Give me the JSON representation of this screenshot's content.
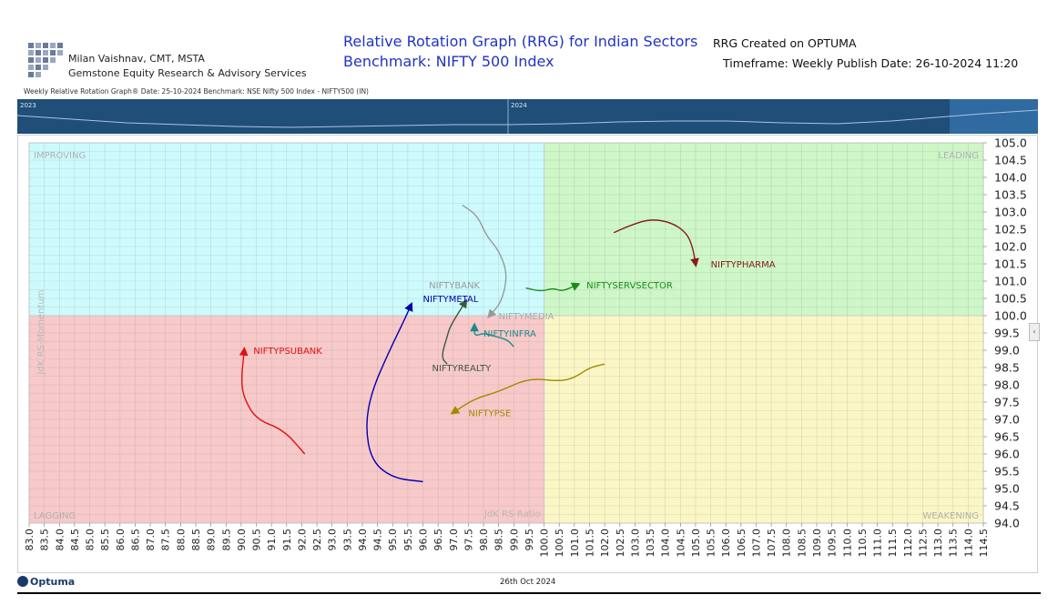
{
  "header": {
    "author_name": "Milan Vaishnav, CMT, MSTA",
    "company": "Gemstone Equity Research & Advisory Services",
    "title_line1": "Relative Rotation Graph (RRG) for Indian Sectors",
    "title_line2": "Benchmark: NIFTY 500 Index",
    "created_on": "RRG Created on OPTUMA",
    "timeframe": "Timeframe: Weekly  Publish Date: 26-10-2024 11:20",
    "subheader": "Weekly Relative Rotation Graph®   Date: 25-10-2024  Benchmark: NSE Nifty 500 Index - NIFTY500 (IN)"
  },
  "timeline": {
    "labels": [
      "2023",
      "2024"
    ]
  },
  "footer": {
    "brand": "Optuma",
    "date": "26th Oct 2024"
  },
  "colors": {
    "improving": "#cdfbfd",
    "leading": "#cdf7c7",
    "lagging": "#f8c9c9",
    "weakening": "#fbf7c5",
    "title_blue": "#1f34c4",
    "timeline_bg": "#1f4e79"
  },
  "chart_data": {
    "type": "scatter",
    "subtype": "relative-rotation-graph",
    "xlabel": "JdK RS-Ratio",
    "ylabel": "JdK RS-Momentum",
    "xlim": [
      83.0,
      114.5
    ],
    "ylim": [
      94.0,
      105.0
    ],
    "x_ticks": [
      "83.0",
      "83.5",
      "84.0",
      "84.5",
      "85.0",
      "85.5",
      "86.0",
      "86.5",
      "87.0",
      "87.5",
      "88.0",
      "88.5",
      "89.0",
      "89.5",
      "90.0",
      "90.5",
      "91.0",
      "91.5",
      "92.0",
      "92.5",
      "93.0",
      "93.5",
      "94.0",
      "94.5",
      "95.0",
      "95.5",
      "96.0",
      "96.5",
      "97.0",
      "97.5",
      "98.0",
      "98.5",
      "99.0",
      "99.5",
      "100.0",
      "100.5",
      "101.0",
      "101.5",
      "102.0",
      "102.5",
      "103.0",
      "103.5",
      "104.0",
      "104.5",
      "105.0",
      "105.5",
      "106.0",
      "106.5",
      "107.0",
      "107.5",
      "108.0",
      "108.5",
      "109.0",
      "109.5",
      "110.0",
      "110.5",
      "111.0",
      "111.5",
      "112.0",
      "112.5",
      "113.0",
      "113.5",
      "114.0",
      "114.5"
    ],
    "y_ticks": [
      "94.0",
      "94.5",
      "95.0",
      "95.5",
      "96.0",
      "96.5",
      "97.0",
      "97.5",
      "98.0",
      "98.5",
      "99.0",
      "99.5",
      "100.0",
      "100.5",
      "101.0",
      "101.5",
      "102.0",
      "102.5",
      "103.0",
      "103.5",
      "104.0",
      "104.5",
      "105.0"
    ],
    "quadrants": [
      {
        "name": "IMPROVING",
        "position": "top-left"
      },
      {
        "name": "LEADING",
        "position": "top-right"
      },
      {
        "name": "LAGGING",
        "position": "bottom-left"
      },
      {
        "name": "WEAKENING",
        "position": "bottom-right"
      }
    ],
    "grid": true,
    "series": [
      {
        "name": "NIFTYPHARMA",
        "color": "#8b1a1a",
        "points": [
          [
            102.3,
            102.4
          ],
          [
            102.8,
            102.6
          ],
          [
            103.5,
            102.8
          ],
          [
            104.2,
            102.7
          ],
          [
            104.7,
            102.4
          ],
          [
            104.9,
            102.0
          ],
          [
            105.0,
            101.5
          ]
        ]
      },
      {
        "name": "NIFTYSERVSECTOR",
        "color": "#1a8a1a",
        "points": [
          [
            99.4,
            100.8
          ],
          [
            99.9,
            100.7
          ],
          [
            100.3,
            100.8
          ],
          [
            100.6,
            100.7
          ],
          [
            101.1,
            100.9
          ]
        ]
      },
      {
        "name": "NIFTYBANK",
        "color": "#999999",
        "points": [
          [
            97.3,
            103.2
          ],
          [
            97.8,
            102.9
          ],
          [
            98.1,
            102.3
          ],
          [
            98.5,
            101.9
          ],
          [
            98.8,
            101.2
          ],
          [
            98.6,
            100.4
          ],
          [
            98.2,
            100.0
          ]
        ]
      },
      {
        "name": "NIFTYMEDIA",
        "color": "#aaaaaa",
        "points": []
      },
      {
        "name": "NIFTYMETAL",
        "color": "#0000b0",
        "points": [
          [
            96.0,
            95.2
          ],
          [
            95.0,
            95.3
          ],
          [
            94.3,
            95.8
          ],
          [
            94.1,
            96.8
          ],
          [
            94.3,
            97.8
          ],
          [
            94.9,
            99.0
          ],
          [
            95.4,
            99.9
          ],
          [
            95.6,
            100.3
          ]
        ]
      },
      {
        "name": "NIFTYINFRA",
        "color": "#1a8a8a",
        "points": [
          [
            99.0,
            99.1
          ],
          [
            98.8,
            99.3
          ],
          [
            98.4,
            99.4
          ],
          [
            98.0,
            99.5
          ],
          [
            97.7,
            99.4
          ],
          [
            97.7,
            99.7
          ]
        ]
      },
      {
        "name": "NIFTYREALTY",
        "color": "#3a5a3a",
        "points": [
          [
            96.8,
            98.6
          ],
          [
            96.6,
            98.8
          ],
          [
            96.8,
            99.4
          ],
          [
            96.9,
            99.7
          ],
          [
            97.4,
            100.4
          ]
        ]
      },
      {
        "name": "NIFTYPSUBANK",
        "color": "#e01010",
        "points": [
          [
            92.1,
            96.0
          ],
          [
            91.4,
            96.7
          ],
          [
            90.5,
            97.0
          ],
          [
            90.1,
            97.6
          ],
          [
            90.0,
            98.1
          ],
          [
            90.1,
            99.0
          ]
        ]
      },
      {
        "name": "NIFTYPSE",
        "color": "#a08a00",
        "points": [
          [
            102.0,
            98.6
          ],
          [
            101.5,
            98.5
          ],
          [
            101.0,
            98.2
          ],
          [
            100.5,
            98.1
          ],
          [
            99.5,
            98.2
          ],
          [
            98.5,
            97.8
          ],
          [
            97.7,
            97.6
          ],
          [
            97.0,
            97.2
          ]
        ]
      }
    ]
  }
}
